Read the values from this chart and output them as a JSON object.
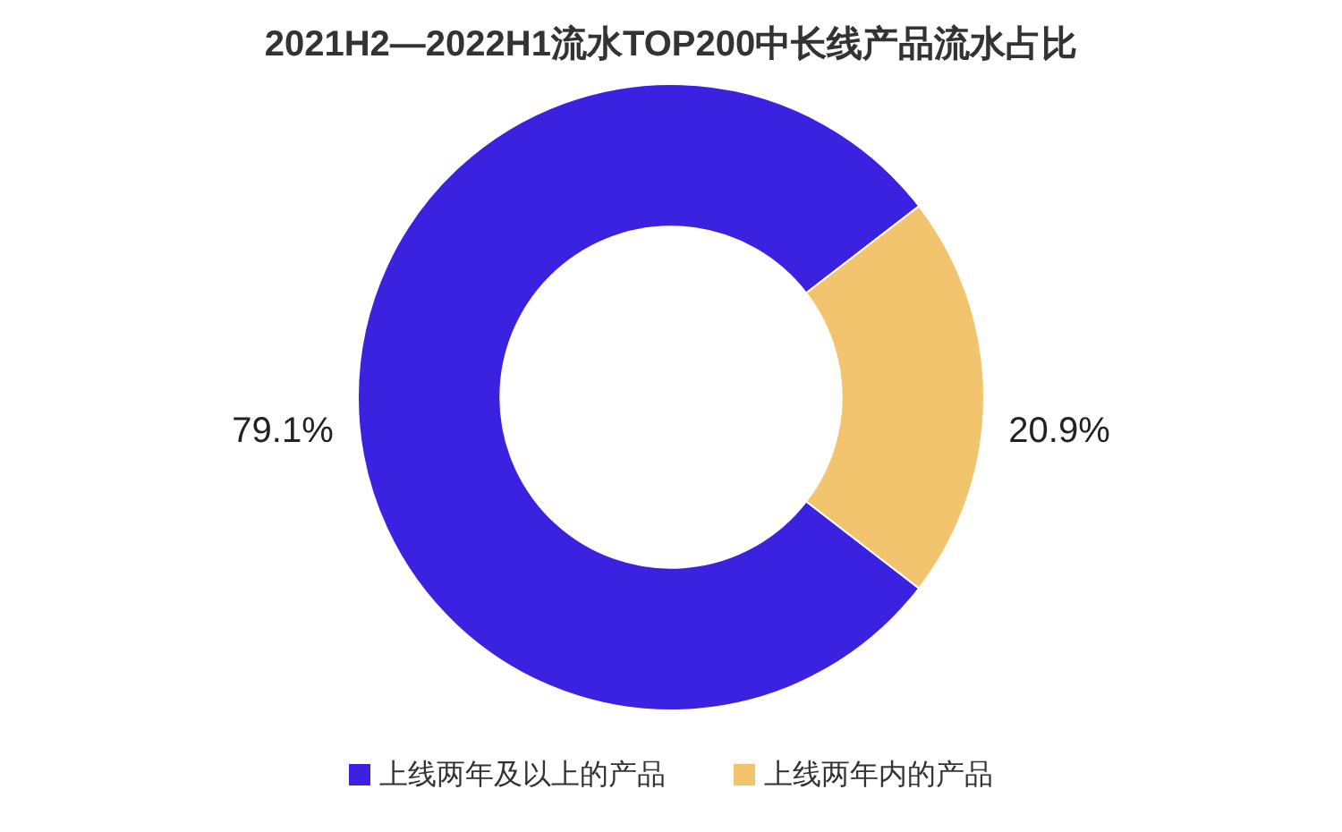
{
  "chart_data": {
    "type": "donut",
    "title": "2021H2—2022H1流水TOP200中长线产品流水占比",
    "categories": [
      "上线两年及以上的产品",
      "上线两年内的产品"
    ],
    "values": [
      79.1,
      20.9
    ],
    "colors": [
      "#3a22e0",
      "#f2c46e"
    ],
    "value_labels": [
      "79.1%",
      "20.9%"
    ],
    "legend": "bottom"
  }
}
